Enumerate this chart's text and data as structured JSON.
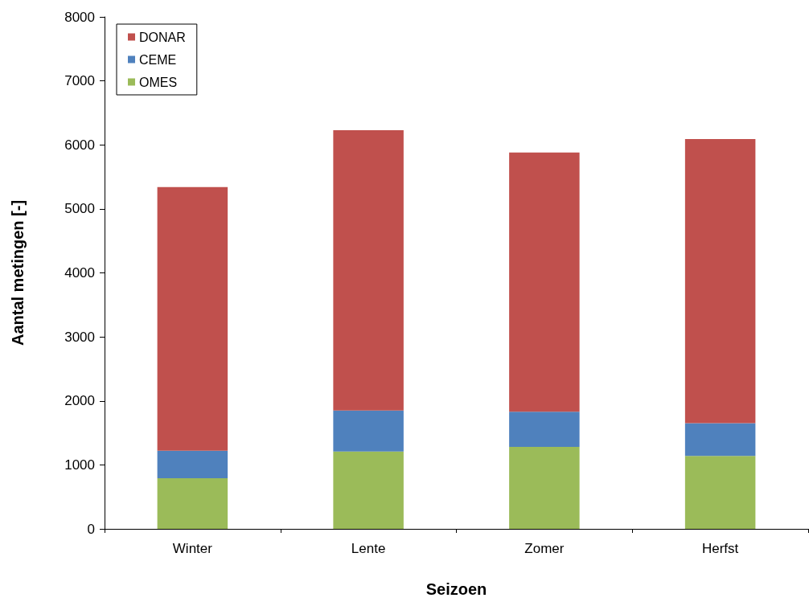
{
  "chart_data": {
    "type": "bar",
    "stacked": true,
    "xlabel": "Seizoen",
    "ylabel": "Aantal metingen [-]",
    "categories": [
      "Winter",
      "Lente",
      "Zomer",
      "Herfst"
    ],
    "series": [
      {
        "name": "OMES",
        "color": "#9bbb59",
        "values": [
          790,
          1210,
          1280,
          1140
        ]
      },
      {
        "name": "CEME",
        "color": "#4f81bd",
        "values": [
          430,
          640,
          550,
          510
        ]
      },
      {
        "name": "DONAR",
        "color": "#c0504d",
        "values": [
          4120,
          4380,
          4050,
          4440
        ]
      }
    ],
    "ylim": [
      0,
      8000
    ],
    "yticks": [
      0,
      1000,
      2000,
      3000,
      4000,
      5000,
      6000,
      7000,
      8000
    ],
    "grid": false,
    "legend": "top left"
  }
}
